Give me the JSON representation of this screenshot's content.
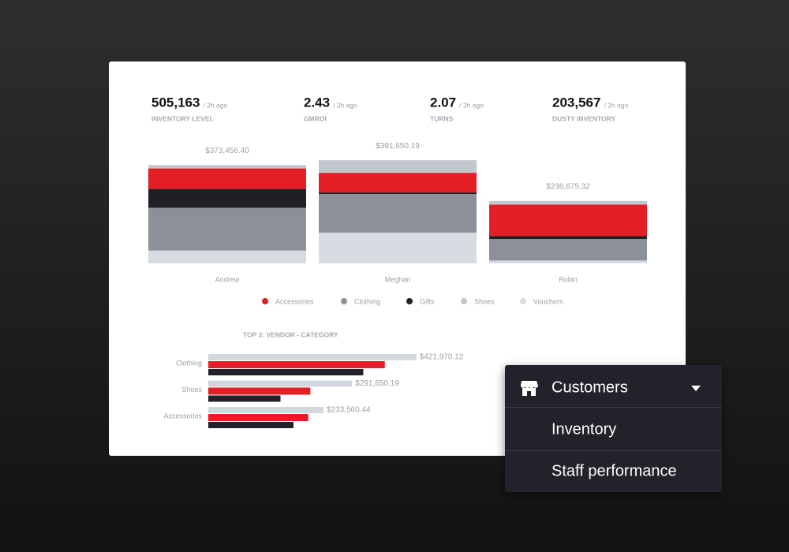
{
  "kpis": [
    {
      "value": "505,163",
      "note": "/ 2h ago",
      "label": "INVENTORY LEVEL"
    },
    {
      "value": "2.43",
      "note": "/ 2h ago",
      "label": "GMROI"
    },
    {
      "value": "2.07",
      "note": "/ 2h ago",
      "label": "TURNS"
    },
    {
      "value": "203,567",
      "note": "/ 2h ago",
      "label": "DUSTY INVENTORY"
    }
  ],
  "chart_data": [
    {
      "type": "stacked_bar",
      "categories": [
        "Andrew",
        "Meghan",
        "Robin"
      ],
      "totals": [
        373456.4,
        391650.19,
        236675.32
      ],
      "total_labels": [
        "$373,456.40",
        "$391,650.19",
        "$236,675.32"
      ],
      "series": [
        {
          "name": "Accessories",
          "color": "#e41e26",
          "values": [
            77900,
            74700,
            119700
          ]
        },
        {
          "name": "Clothing",
          "color": "#8c9199",
          "values": [
            162400,
            146500,
            81600
          ]
        },
        {
          "name": "Gifts",
          "color": "#1f2024",
          "values": [
            71400,
            6000,
            10900
          ]
        },
        {
          "name": "Shoes",
          "color": "#c2c7cd",
          "values": [
            13000,
            47800,
            13600
          ]
        },
        {
          "name": "Vouchers",
          "color": "#d6dce1",
          "values": [
            48700,
            116600,
            10900
          ]
        }
      ],
      "ylim": [
        0,
        440000
      ]
    },
    {
      "type": "hbar",
      "title": "TOP 3: VENDOR - CATEGORY",
      "categories": [
        "Clothing",
        "Shoes",
        "Accessories"
      ],
      "series": [
        {
          "color": "#d2d8de",
          "values": [
            421970.12,
            291650.19,
            233560.44
          ],
          "value_labels": [
            "$421,970.12",
            "$291,650.19",
            "$233,560.44"
          ]
        },
        {
          "color": "#e41e26",
          "values": [
            358000,
            206900,
            202700
          ]
        },
        {
          "color": "#22232a",
          "values": [
            314300,
            146400,
            172800
          ]
        }
      ],
      "xlim": [
        0,
        480000
      ]
    }
  ],
  "menu": {
    "items": [
      "Customers",
      "Inventory",
      "Staff performance"
    ]
  }
}
